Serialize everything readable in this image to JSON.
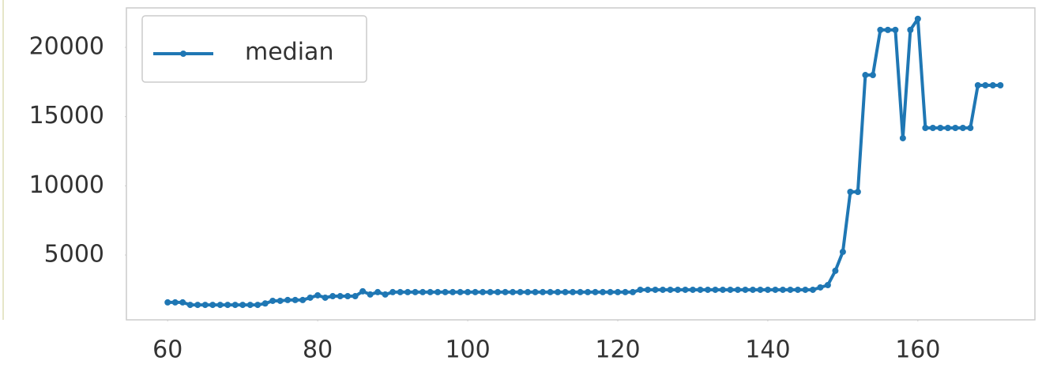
{
  "chart_data": {
    "type": "line",
    "x": [
      60,
      61,
      62,
      63,
      64,
      65,
      66,
      67,
      68,
      69,
      70,
      71,
      72,
      73,
      74,
      75,
      76,
      77,
      78,
      79,
      80,
      81,
      82,
      83,
      84,
      85,
      86,
      87,
      88,
      89,
      90,
      91,
      92,
      93,
      94,
      95,
      96,
      97,
      98,
      99,
      100,
      101,
      102,
      103,
      104,
      105,
      106,
      107,
      108,
      109,
      110,
      111,
      112,
      113,
      114,
      115,
      116,
      117,
      118,
      119,
      120,
      121,
      122,
      123,
      124,
      125,
      126,
      127,
      128,
      129,
      130,
      131,
      132,
      133,
      134,
      135,
      136,
      137,
      138,
      139,
      140,
      141,
      142,
      143,
      144,
      145,
      146,
      147,
      148,
      149,
      150,
      151,
      152,
      153,
      154,
      155,
      156,
      157,
      158,
      159,
      160,
      161,
      162,
      163,
      164,
      165,
      166,
      167,
      168,
      169,
      170,
      171
    ],
    "series": [
      {
        "name": "median",
        "color": "#1f77b4",
        "values": [
          1580,
          1580,
          1580,
          1400,
          1400,
          1400,
          1400,
          1400,
          1400,
          1400,
          1400,
          1400,
          1400,
          1500,
          1690,
          1690,
          1750,
          1750,
          1750,
          1920,
          2090,
          1920,
          2030,
          2030,
          2030,
          2030,
          2380,
          2150,
          2320,
          2150,
          2320,
          2320,
          2320,
          2320,
          2320,
          2320,
          2320,
          2320,
          2320,
          2320,
          2320,
          2320,
          2320,
          2320,
          2320,
          2320,
          2320,
          2320,
          2320,
          2320,
          2320,
          2320,
          2320,
          2320,
          2320,
          2320,
          2320,
          2320,
          2320,
          2320,
          2320,
          2320,
          2320,
          2490,
          2490,
          2490,
          2490,
          2490,
          2490,
          2490,
          2490,
          2490,
          2490,
          2490,
          2490,
          2490,
          2490,
          2490,
          2490,
          2490,
          2490,
          2490,
          2490,
          2490,
          2490,
          2490,
          2490,
          2660,
          2830,
          3860,
          5230,
          9560,
          9560,
          18000,
          18000,
          21260,
          21260,
          21260,
          13440,
          21260,
          22060,
          14180,
          14180,
          14180,
          14180,
          14180,
          14180,
          14180,
          17260,
          17260,
          17260,
          17260
        ]
      }
    ],
    "xlim": [
      54.5,
      175.6
    ],
    "ylim": [
      320,
      22850
    ],
    "xticks": [
      60,
      80,
      100,
      120,
      140,
      160
    ],
    "yticks": [
      5000,
      10000,
      15000,
      20000
    ],
    "grid": false,
    "legend": "upper left"
  }
}
